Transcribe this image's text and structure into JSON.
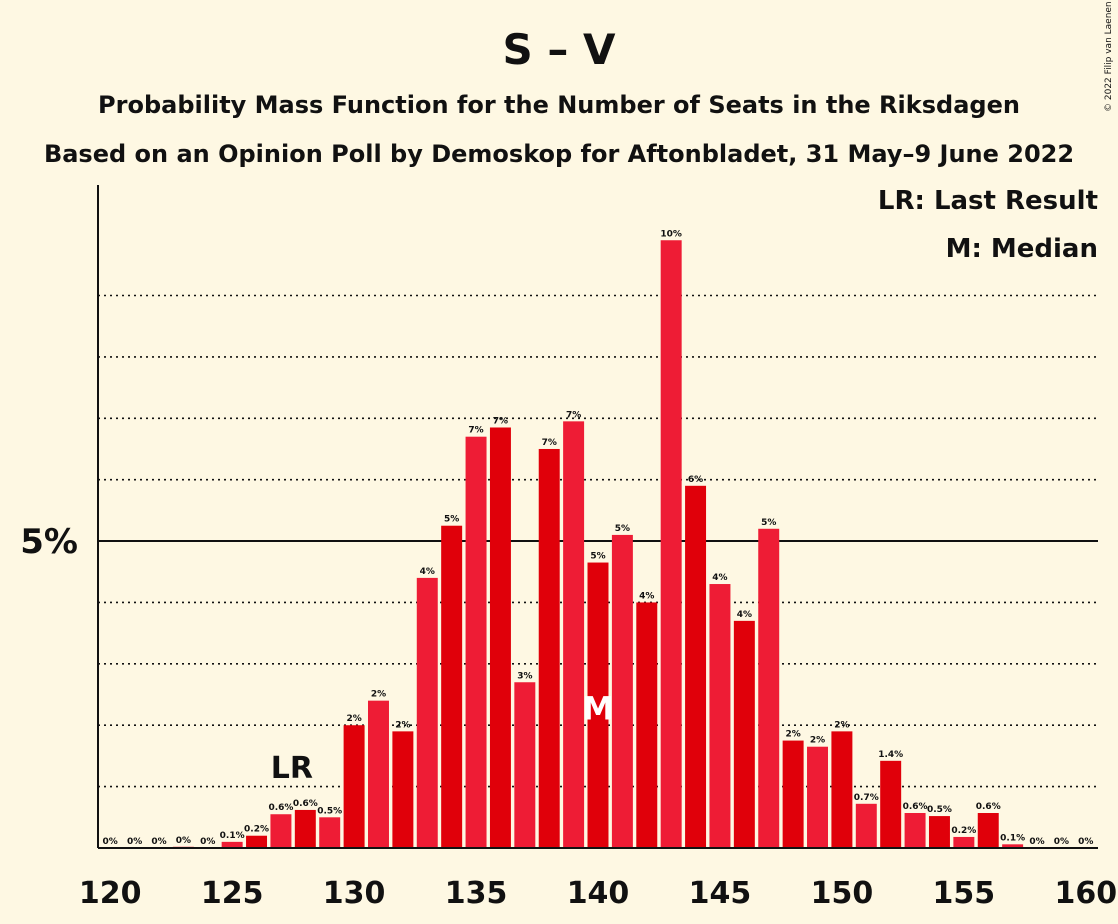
{
  "colors": {
    "background": "#fef8e3",
    "bar_primary": "#e0000a",
    "bar_alternate": "#ee1c35",
    "text": "#111111"
  },
  "chart_data": {
    "type": "bar",
    "title": "S – V",
    "subtitle_line1": "Probability Mass Function for the Number of Seats in the Riksdagen",
    "subtitle_line2": "Based on an Opinion Poll by Demoskop for Aftonbladet, 31 May–9 June 2022",
    "copyright": "© 2022 Filip van Laenen",
    "legend": [
      "LR: Last Result",
      "M: Median"
    ],
    "legend_position": "top-right",
    "xlabel": "",
    "ylabel": "",
    "x": [
      120,
      121,
      122,
      123,
      124,
      125,
      126,
      127,
      128,
      129,
      130,
      131,
      132,
      133,
      134,
      135,
      136,
      137,
      138,
      139,
      140,
      141,
      142,
      143,
      144,
      145,
      146,
      147,
      148,
      149,
      150,
      151,
      152,
      153,
      154,
      155,
      156,
      157,
      158,
      159,
      160
    ],
    "values": [
      0,
      0,
      0,
      0.02,
      0,
      0.1,
      0.2,
      0.55,
      0.62,
      0.5,
      2.0,
      2.4,
      1.9,
      4.4,
      5.25,
      6.7,
      6.85,
      2.7,
      6.5,
      6.95,
      4.65,
      5.1,
      4.0,
      9.9,
      5.9,
      4.3,
      3.7,
      5.2,
      1.75,
      1.65,
      1.9,
      0.72,
      1.42,
      0.57,
      0.52,
      0.18,
      0.57,
      0.06,
      0,
      0,
      0
    ],
    "data_labels": [
      "0%",
      "0%",
      "0%",
      "0%",
      "0%",
      "0.1%",
      "0.2%",
      "0.6%",
      "0.6%",
      "0.5%",
      "2%",
      "2%",
      "2%",
      "4%",
      "5%",
      "7%",
      "7%",
      "3%",
      "7%",
      "7%",
      "5%",
      "5%",
      "4%",
      "10%",
      "6%",
      "4%",
      "4%",
      "5%",
      "2%",
      "2%",
      "2%",
      "0.7%",
      "1.4%",
      "0.6%",
      "0.5%",
      "0.2%",
      "0.6%",
      "0.1%",
      "0%",
      "0%",
      "0%"
    ],
    "x_ticks": [
      120,
      125,
      130,
      135,
      140,
      145,
      150,
      155,
      160
    ],
    "y_tick_labels": [
      {
        "value": 5,
        "label": "5%"
      }
    ],
    "gridlines": [
      1,
      2,
      3,
      4,
      6,
      7,
      8,
      9
    ],
    "ylim": [
      0,
      10.8
    ],
    "xlim": [
      119.5,
      160.5
    ],
    "last_result_seat": 128,
    "last_result_label": "LR",
    "median_seat": 140,
    "median_label": "M"
  }
}
